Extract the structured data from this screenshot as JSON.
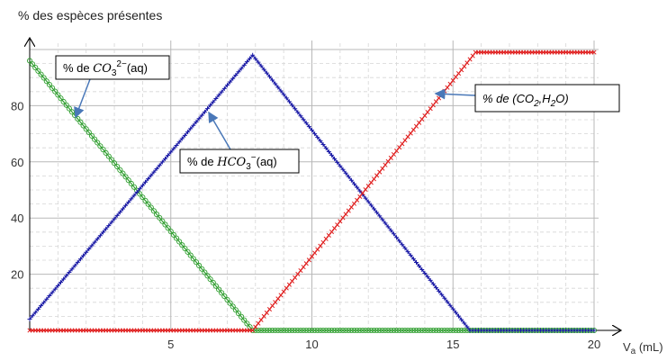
{
  "chart_data": {
    "type": "line",
    "title": "% des espèces présentes",
    "xlabel": "V",
    "xlabel_sub": "a",
    "xlabel_unit": " (mL)",
    "xlim": [
      0,
      20
    ],
    "ylim": [
      0,
      100
    ],
    "x_ticks": [
      5,
      10,
      15,
      20
    ],
    "y_ticks": [
      20,
      40,
      60,
      80
    ],
    "grid": true,
    "series": [
      {
        "name": "% de CO3²⁻(aq)",
        "color": "#2e9e2e",
        "marker": "circle",
        "points": [
          [
            0,
            96
          ],
          [
            7.9,
            0
          ],
          [
            20,
            0
          ]
        ]
      },
      {
        "name": "% de HCO3⁻(aq)",
        "color": "#1a1aa6",
        "marker": "plus",
        "points": [
          [
            0,
            4
          ],
          [
            7.9,
            98
          ],
          [
            15.6,
            0
          ],
          [
            20,
            0
          ]
        ]
      },
      {
        "name": "% de (CO2,H2O)",
        "color": "#e02020",
        "marker": "cross",
        "points": [
          [
            0,
            0
          ],
          [
            7.9,
            0
          ],
          [
            15.8,
            99
          ],
          [
            20,
            99
          ]
        ]
      }
    ]
  },
  "annotations": [
    {
      "id": "co3",
      "pre": "% de ",
      "formula": "CO",
      "sub": "3",
      "sup": "2−",
      "post": "(aq)",
      "series": 0
    },
    {
      "id": "hco3",
      "pre": "% de ",
      "formula": "HCO",
      "sub": "3",
      "sup": "−",
      "post": "(aq)",
      "series": 1
    },
    {
      "id": "h2co3",
      "pre": "% de (CO",
      "sub1": "2",
      "mid": ",H",
      "sub2": "2",
      "post": "O)",
      "series": 2
    }
  ]
}
